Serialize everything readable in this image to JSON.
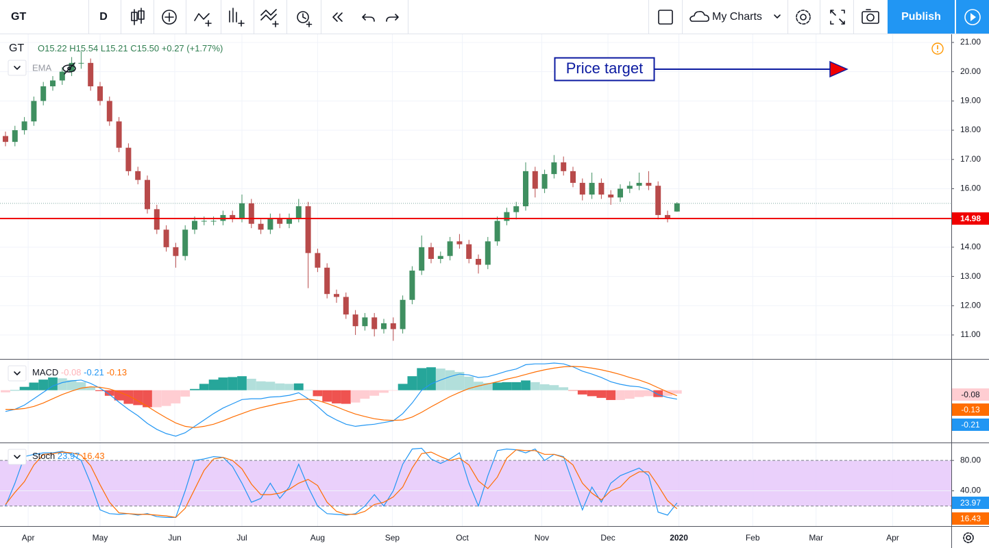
{
  "toolbar": {
    "symbol": "GT",
    "interval": "D",
    "layouts": "My Charts",
    "publish": "Publish"
  },
  "chart_data": [
    {
      "type": "candlestick",
      "symbol": "GT",
      "legend": [
        "O15.22",
        "H15.54",
        "L15.21",
        "C15.50",
        "+0.27 (+1.77%)"
      ],
      "overlay": "EMA",
      "annotation": "Price target",
      "up_color": "#3f8f60",
      "down_color": "#b84a4a",
      "categories": [
        null,
        null,
        null,
        null,
        null,
        null,
        null,
        null,
        null,
        null,
        null,
        null,
        null,
        null,
        null,
        null,
        null,
        null,
        null,
        null,
        null,
        null,
        null,
        null,
        null,
        null,
        null,
        null,
        null,
        null,
        null,
        null,
        null,
        null,
        null,
        null,
        null,
        null,
        null,
        null,
        null,
        null,
        null,
        null,
        null,
        null,
        null,
        null,
        null,
        null,
        null,
        null,
        null,
        null,
        null,
        null,
        null,
        null,
        null,
        null,
        null,
        null,
        null,
        null,
        null,
        null,
        null,
        null,
        null,
        null,
        null,
        null
      ],
      "open": [
        17.8,
        17.6,
        18.0,
        18.3,
        19.0,
        19.5,
        19.7,
        20.0,
        20.3,
        20.3,
        19.5,
        19.0,
        18.3,
        17.4,
        16.6,
        16.3,
        15.3,
        14.6,
        14.0,
        13.7,
        14.6,
        14.9,
        14.9,
        14.9,
        15.1,
        15.0,
        15.5,
        14.8,
        14.6,
        15.0,
        14.8,
        15.0,
        15.4,
        13.8,
        13.3,
        12.4,
        12.3,
        11.7,
        11.3,
        11.6,
        11.2,
        11.4,
        11.2,
        12.2,
        13.2,
        14.0,
        13.6,
        13.7,
        14.2,
        14.1,
        13.6,
        13.4,
        14.2,
        14.9,
        15.2,
        15.4,
        16.6,
        16.0,
        16.5,
        16.9,
        16.6,
        16.2,
        15.8,
        16.2,
        15.8,
        15.7,
        16.0,
        16.1,
        16.2,
        16.1,
        15.1,
        15.22
      ],
      "high": [
        17.95,
        18.15,
        18.45,
        19.15,
        19.65,
        19.85,
        20.15,
        20.5,
        20.7,
        20.45,
        19.65,
        19.15,
        18.45,
        17.55,
        16.75,
        16.45,
        15.45,
        14.75,
        14.15,
        14.75,
        15.05,
        15.05,
        15.05,
        15.25,
        15.25,
        15.8,
        15.65,
        14.95,
        15.15,
        15.15,
        15.15,
        15.65,
        15.55,
        13.95,
        13.45,
        12.55,
        12.45,
        11.85,
        11.75,
        11.75,
        11.55,
        11.6,
        12.35,
        13.35,
        14.4,
        14.15,
        13.85,
        14.35,
        14.45,
        14.25,
        13.75,
        14.35,
        15.05,
        15.35,
        15.55,
        16.9,
        16.75,
        16.65,
        17.15,
        17.1,
        16.75,
        16.35,
        16.55,
        16.35,
        15.95,
        16.15,
        16.25,
        16.55,
        16.6,
        16.25,
        15.25,
        15.54
      ],
      "low": [
        17.45,
        17.45,
        17.85,
        18.15,
        18.85,
        19.35,
        19.55,
        19.85,
        20.1,
        19.35,
        18.85,
        18.15,
        17.25,
        16.45,
        16.15,
        15.15,
        14.45,
        13.85,
        13.3,
        13.55,
        14.45,
        14.75,
        14.75,
        14.75,
        14.85,
        14.85,
        14.65,
        14.45,
        14.45,
        14.65,
        14.65,
        14.85,
        12.6,
        13.15,
        12.25,
        12.1,
        11.55,
        11.0,
        11.15,
        10.95,
        11.05,
        10.8,
        11.05,
        12.05,
        13.05,
        13.45,
        13.45,
        13.55,
        13.95,
        13.45,
        13.1,
        13.25,
        14.05,
        14.75,
        14.95,
        15.25,
        15.7,
        15.85,
        16.35,
        16.45,
        16.05,
        15.6,
        15.65,
        15.65,
        15.45,
        15.55,
        15.85,
        15.95,
        15.95,
        14.95,
        14.85,
        15.21
      ],
      "close": [
        17.6,
        18.0,
        18.3,
        19.0,
        19.5,
        19.7,
        20.0,
        20.3,
        20.3,
        19.5,
        19.0,
        18.3,
        17.4,
        16.6,
        16.3,
        15.3,
        14.6,
        14.0,
        13.7,
        14.6,
        14.9,
        14.9,
        14.9,
        15.1,
        15.0,
        15.5,
        14.8,
        14.6,
        15.0,
        14.8,
        15.0,
        15.4,
        13.8,
        13.3,
        12.4,
        12.3,
        11.7,
        11.3,
        11.6,
        11.2,
        11.4,
        11.2,
        12.2,
        13.2,
        14.0,
        13.6,
        13.7,
        14.2,
        14.1,
        13.6,
        13.4,
        14.2,
        14.9,
        15.2,
        15.4,
        16.6,
        16.0,
        16.5,
        16.9,
        16.6,
        16.2,
        15.8,
        16.2,
        15.8,
        15.7,
        16.0,
        16.1,
        16.2,
        16.1,
        15.1,
        15.0,
        15.5
      ],
      "horizontal_line": {
        "value": 14.98,
        "color": "#f00000"
      },
      "ylim": [
        10.18,
        21.28
      ],
      "yticks": [
        {
          "value": 11,
          "label": "11.00"
        },
        {
          "value": 12,
          "label": "12.00"
        },
        {
          "value": 13,
          "label": "13.00"
        },
        {
          "value": 14,
          "label": "14.00"
        },
        {
          "value": 15,
          "label": "15.00"
        },
        {
          "value": 16,
          "label": "16.00"
        },
        {
          "value": 17,
          "label": "17.00"
        },
        {
          "value": 18,
          "label": "18.00"
        },
        {
          "value": 19,
          "label": "19.00"
        },
        {
          "value": 20,
          "label": "20.00"
        },
        {
          "value": 21,
          "label": "21.00"
        }
      ],
      "xlim": [
        -0.58,
        100
      ],
      "xticks": [
        {
          "value": 2.4,
          "label": "Apr"
        },
        {
          "value": 10,
          "label": "May"
        },
        {
          "value": 17.9,
          "label": "Jun"
        },
        {
          "value": 25,
          "label": "Jul"
        },
        {
          "value": 33,
          "label": "Aug"
        },
        {
          "value": 40.9,
          "label": "Sep"
        },
        {
          "value": 48.3,
          "label": "Oct"
        },
        {
          "value": 56.7,
          "label": "Nov"
        },
        {
          "value": 63.7,
          "label": "Dec"
        },
        {
          "value": 71.2,
          "label": "2020",
          "bold": true
        },
        {
          "value": 79,
          "label": "Feb"
        },
        {
          "value": 85.7,
          "label": "Mar"
        },
        {
          "value": 93.8,
          "label": "Apr"
        }
      ],
      "grid": true
    },
    {
      "type": "macd",
      "title": "MACD",
      "ylim": [
        -1.23,
        0.72
      ],
      "histogram": {
        "colors": [
          "#26a69a",
          "#b2dfdb",
          "#ffcdd2",
          "#ef5350"
        ],
        "values": [
          -0.05,
          0,
          0.08,
          0.18,
          0.25,
          0.3,
          0.28,
          0.24,
          0.19,
          0.08,
          -0.02,
          -0.13,
          -0.24,
          -0.32,
          -0.35,
          -0.4,
          -0.4,
          -0.37,
          -0.31,
          -0.15,
          0.03,
          0.15,
          0.25,
          0.3,
          0.31,
          0.33,
          0.27,
          0.21,
          0.2,
          0.16,
          0.15,
          0.16,
          0.01,
          -0.14,
          -0.27,
          -0.31,
          -0.32,
          -0.29,
          -0.2,
          -0.13,
          -0.06,
          -0.01,
          0.15,
          0.33,
          0.52,
          0.54,
          0.51,
          0.47,
          0.43,
          0.32,
          0.2,
          0.17,
          0.18,
          0.19,
          0.19,
          0.23,
          0.19,
          0.14,
          0.12,
          0.07,
          -0.01,
          -0.1,
          -0.14,
          -0.18,
          -0.23,
          -0.23,
          -0.2,
          -0.16,
          -0.14,
          -0.16,
          -0.13,
          -0.08
        ]
      },
      "series": [
        {
          "color": "#2196f3",
          "values": [
            -0.5,
            -0.45,
            -0.35,
            -0.2,
            -0.05,
            0.1,
            0.18,
            0.22,
            0.24,
            0.16,
            0.05,
            -0.1,
            -0.28,
            -0.45,
            -0.6,
            -0.78,
            -0.92,
            -1.02,
            -1.08,
            -1.0,
            -0.85,
            -0.7,
            -0.55,
            -0.42,
            -0.32,
            -0.22,
            -0.2,
            -0.2,
            -0.16,
            -0.15,
            -0.12,
            -0.06,
            -0.2,
            -0.38,
            -0.58,
            -0.7,
            -0.8,
            -0.85,
            -0.82,
            -0.8,
            -0.76,
            -0.72,
            -0.55,
            -0.3,
            0.0,
            0.15,
            0.24,
            0.32,
            0.38,
            0.36,
            0.3,
            0.32,
            0.38,
            0.45,
            0.5,
            0.6,
            0.62,
            0.62,
            0.64,
            0.62,
            0.55,
            0.45,
            0.38,
            0.3,
            0.2,
            0.14,
            0.1,
            0.08,
            0.02,
            -0.1,
            -0.17,
            -0.21
          ]
        },
        {
          "color": "#ff6d00",
          "values": [
            -0.45,
            -0.45,
            -0.43,
            -0.38,
            -0.3,
            -0.2,
            -0.1,
            -0.02,
            0.05,
            0.08,
            0.07,
            0.03,
            -0.04,
            -0.13,
            -0.25,
            -0.38,
            -0.52,
            -0.65,
            -0.77,
            -0.85,
            -0.88,
            -0.85,
            -0.8,
            -0.72,
            -0.63,
            -0.55,
            -0.47,
            -0.41,
            -0.36,
            -0.31,
            -0.27,
            -0.22,
            -0.21,
            -0.24,
            -0.31,
            -0.39,
            -0.48,
            -0.56,
            -0.62,
            -0.67,
            -0.7,
            -0.71,
            -0.7,
            -0.63,
            -0.52,
            -0.39,
            -0.27,
            -0.15,
            -0.05,
            0.04,
            0.1,
            0.15,
            0.2,
            0.26,
            0.31,
            0.37,
            0.43,
            0.48,
            0.52,
            0.55,
            0.56,
            0.55,
            0.52,
            0.48,
            0.43,
            0.37,
            0.3,
            0.24,
            0.16,
            0.06,
            -0.04,
            -0.13
          ]
        }
      ]
    },
    {
      "type": "stochastic",
      "title": "Stoch",
      "ylim": [
        -6.4,
        102.7
      ],
      "yticks": [
        {
          "value": 40,
          "label": "40.00"
        },
        {
          "value": 80,
          "label": "80.00"
        }
      ],
      "band": [
        20,
        80
      ],
      "band_color": "#e6c8fa",
      "series": [
        {
          "color": "#2196f3",
          "values": [
            20,
            50,
            85,
            88,
            90,
            90,
            92,
            88,
            80,
            50,
            15,
            10,
            9,
            10,
            8,
            10,
            6,
            5,
            5,
            40,
            80,
            82,
            85,
            84,
            72,
            50,
            25,
            30,
            50,
            30,
            45,
            75,
            45,
            20,
            10,
            9,
            8,
            10,
            20,
            35,
            20,
            40,
            75,
            95,
            96,
            82,
            76,
            82,
            90,
            50,
            20,
            60,
            93,
            95,
            94,
            90,
            95,
            80,
            88,
            85,
            50,
            15,
            45,
            25,
            50,
            60,
            65,
            70,
            60,
            12,
            8,
            23.97
          ]
        },
        {
          "color": "#ff6d00",
          "values": [
            22,
            38,
            52,
            74,
            88,
            89,
            91,
            90,
            87,
            73,
            48,
            25,
            11,
            10,
            9,
            9,
            8,
            7,
            5,
            17,
            42,
            67,
            82,
            84,
            80,
            69,
            49,
            35,
            35,
            37,
            42,
            50,
            55,
            47,
            25,
            13,
            9,
            9,
            13,
            22,
            25,
            32,
            45,
            70,
            89,
            91,
            85,
            80,
            83,
            74,
            53,
            43,
            58,
            83,
            94,
            93,
            93,
            88,
            88,
            84,
            74,
            50,
            37,
            28,
            40,
            45,
            58,
            65,
            65,
            47,
            27,
            16.43
          ]
        }
      ]
    }
  ]
}
